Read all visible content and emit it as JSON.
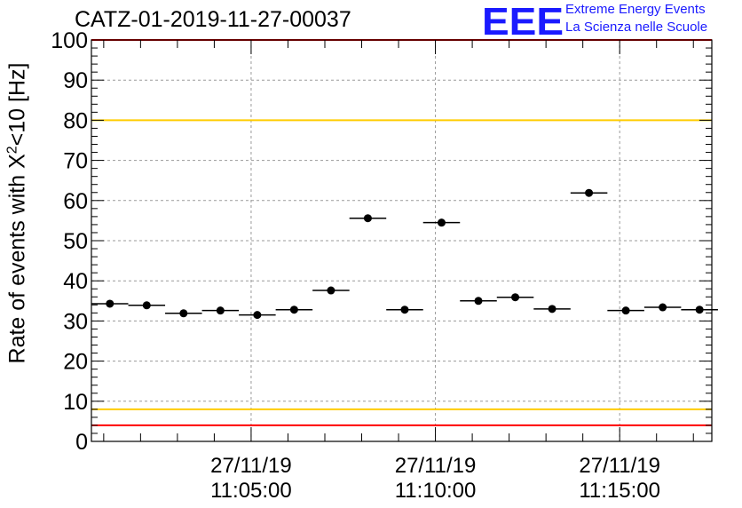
{
  "chart_data": {
    "type": "scatter",
    "title": "CATZ-01-2019-11-27-00037",
    "ylabel_parts": [
      "Rate of events with X",
      "2",
      "<10 [Hz]"
    ],
    "ylim": [
      0,
      100
    ],
    "yticks": [
      0,
      10,
      20,
      30,
      40,
      50,
      60,
      70,
      80,
      90,
      100
    ],
    "xlim": [
      "11:00:40",
      "11:17:30"
    ],
    "xticks": [
      {
        "date": "27/11/19",
        "time": "11:05:00"
      },
      {
        "date": "27/11/19",
        "time": "11:10:00"
      },
      {
        "date": "27/11/19",
        "time": "11:15:00"
      }
    ],
    "grid": true,
    "bin_width_s": 60,
    "points": [
      {
        "t": "11:01:10",
        "y": 34.3
      },
      {
        "t": "11:02:10",
        "y": 33.9
      },
      {
        "t": "11:03:10",
        "y": 31.9
      },
      {
        "t": "11:04:10",
        "y": 32.6
      },
      {
        "t": "11:05:10",
        "y": 31.5
      },
      {
        "t": "11:06:10",
        "y": 32.8
      },
      {
        "t": "11:07:10",
        "y": 37.6
      },
      {
        "t": "11:08:10",
        "y": 55.6
      },
      {
        "t": "11:09:10",
        "y": 32.8
      },
      {
        "t": "11:10:10",
        "y": 54.5
      },
      {
        "t": "11:11:10",
        "y": 35.0
      },
      {
        "t": "11:12:10",
        "y": 35.9
      },
      {
        "t": "11:13:10",
        "y": 33.0
      },
      {
        "t": "11:14:10",
        "y": 61.9
      },
      {
        "t": "11:15:10",
        "y": 32.6
      },
      {
        "t": "11:16:10",
        "y": 33.4
      },
      {
        "t": "11:17:10",
        "y": 32.8
      }
    ],
    "reference_lines": [
      {
        "y": 100,
        "color": "#ff0000"
      },
      {
        "y": 80,
        "color": "#ffcc00"
      },
      {
        "y": 8,
        "color": "#ffcc00"
      },
      {
        "y": 4,
        "color": "#ff0000"
      }
    ],
    "marker_color": "#000000"
  },
  "logo": {
    "mark": "EEE",
    "line1": "Extreme Energy Events",
    "line2": "La Scienza nelle Scuole",
    "color": "#1a1aff"
  }
}
